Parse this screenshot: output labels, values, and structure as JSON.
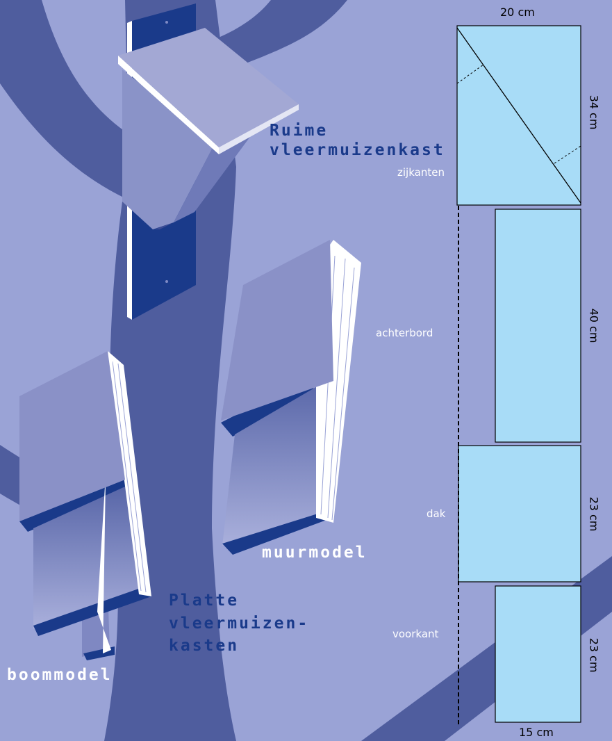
{
  "titles": {
    "ruime_line1": "Ruime",
    "ruime_line2": "vleermuizenkast",
    "platte_line1": "Platte",
    "platte_line2": "vleermuizen-",
    "platte_line3": "kasten",
    "muurmodel": "muurmodel",
    "boommodel": "boommodel"
  },
  "panels": {
    "zijkanten": "zijkanten",
    "achterbord": "achterbord",
    "dak": "dak",
    "voorkant": "voorkant"
  },
  "dimensions": {
    "width_top": "20 cm",
    "width_bottom": "15 cm",
    "zijkanten_height": "34 cm",
    "achterbord_height": "40 cm",
    "dak_height": "23 cm",
    "voorkant_height": "23 cm"
  },
  "colors": {
    "background": "#9aa3d6",
    "tree": "#4f5d9e",
    "panel_fill": "#a8dcf7",
    "box_dark": "#1a3a8a"
  }
}
